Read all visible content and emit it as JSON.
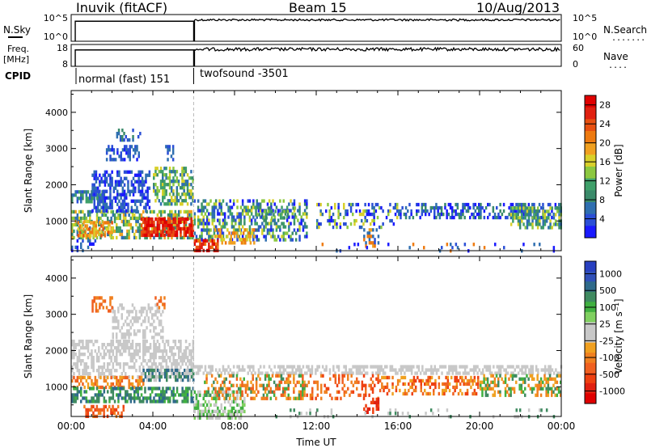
{
  "header": {
    "station": "Inuvik (fitACF)",
    "beam": "Beam 15",
    "date": "10/Aug/2013"
  },
  "top_panels": {
    "nsky": {
      "label": "N.Sky",
      "left_ticks": [
        "10^5",
        "10^0"
      ],
      "right_label": "N.Search",
      "right_ticks": [
        "10^5",
        "10^0"
      ],
      "right_marker": ".........",
      "level_before_change": 0.75,
      "level_after_change": 0.8
    },
    "freq": {
      "label_line1": "Freq.",
      "label_line2": "[MHz]",
      "left_ticks": [
        "18",
        "8"
      ],
      "right_label": "Nave",
      "right_ticks": [
        "60",
        "0"
      ],
      "right_marker": "....",
      "level_before_change": 0.75,
      "level_after_change": 0.78
    },
    "cpid": {
      "label": "CPID",
      "mode_1": "normal (fast) 151",
      "mode_2": "twofsound -3501",
      "change_time_hours": 6.0
    }
  },
  "chart_data": [
    {
      "type": "heatmap",
      "name": "power",
      "ylabel": "Slant Range [km]",
      "xlabel": "",
      "x_range_hours": [
        0,
        24
      ],
      "ylim_km": [
        180,
        4600
      ],
      "y_ticks": [
        1000,
        2000,
        3000,
        4000
      ],
      "x_ticks": [
        "00:00",
        "04:00",
        "08:00",
        "12:00",
        "16:00",
        "20:00",
        "00:00"
      ],
      "colorbar": {
        "label": "Power [dB]",
        "ticks": [
          "4",
          "8",
          "12",
          "16",
          "20",
          "24",
          "28"
        ],
        "colors": [
          "#1a1aff",
          "#2b4fd6",
          "#2f6fb0",
          "#3a8a6a",
          "#3fa06a",
          "#8cc840",
          "#d8d02a",
          "#f0a020",
          "#ee7a10",
          "#e85010",
          "#e02010",
          "#e00000"
        ]
      },
      "blocks": [
        {
          "t0": 0.0,
          "t1": 1.6,
          "r0": 1500,
          "r1": 1850,
          "colors": [
            1,
            2,
            3,
            4
          ],
          "density": 0.7
        },
        {
          "t0": 0.0,
          "t1": 6.0,
          "r0": 500,
          "r1": 1300,
          "colors": [
            2,
            3,
            4,
            5,
            6,
            7
          ],
          "density": 0.55
        },
        {
          "t0": 0.3,
          "t1": 2.0,
          "r0": 600,
          "r1": 1000,
          "colors": [
            6,
            7,
            8,
            9
          ],
          "density": 0.6
        },
        {
          "t0": 1.0,
          "t1": 3.8,
          "r0": 1300,
          "r1": 2400,
          "colors": [
            0,
            1,
            2
          ],
          "density": 0.55
        },
        {
          "t0": 1.7,
          "t1": 3.3,
          "r0": 2700,
          "r1": 3100,
          "colors": [
            0,
            1,
            2
          ],
          "density": 0.5
        },
        {
          "t0": 2.2,
          "t1": 3.4,
          "r0": 3200,
          "r1": 3550,
          "colors": [
            1,
            2,
            3
          ],
          "density": 0.35
        },
        {
          "t0": 4.0,
          "t1": 6.0,
          "r0": 1500,
          "r1": 2500,
          "colors": [
            2,
            3,
            4,
            5,
            6
          ],
          "density": 0.55
        },
        {
          "t0": 3.4,
          "t1": 6.0,
          "r0": 600,
          "r1": 1100,
          "colors": [
            9,
            10,
            11
          ],
          "density": 0.8
        },
        {
          "t0": 4.6,
          "t1": 5.0,
          "r0": 2700,
          "r1": 3100,
          "colors": [
            1,
            2
          ],
          "density": 0.45
        },
        {
          "t0": 0.0,
          "t1": 1.2,
          "r0": 200,
          "r1": 500,
          "colors": [
            0,
            1,
            2
          ],
          "density": 0.3
        },
        {
          "t0": 6.0,
          "t1": 11.5,
          "r0": 500,
          "r1": 1600,
          "colors": [
            0,
            1,
            2,
            3,
            4,
            5,
            6
          ],
          "density": 0.45
        },
        {
          "t0": 6.0,
          "t1": 7.2,
          "r0": 200,
          "r1": 500,
          "colors": [
            8,
            9,
            10,
            11
          ],
          "density": 0.8
        },
        {
          "t0": 7.0,
          "t1": 9.0,
          "r0": 400,
          "r1": 800,
          "colors": [
            6,
            7,
            8
          ],
          "density": 0.4
        },
        {
          "t0": 9.0,
          "t1": 11.0,
          "r0": 1100,
          "r1": 1400,
          "colors": [
            3,
            4,
            5
          ],
          "density": 0.35
        },
        {
          "t0": 12.0,
          "t1": 16.0,
          "r0": 800,
          "r1": 1500,
          "colors": [
            0,
            1,
            2,
            5,
            6
          ],
          "density": 0.3
        },
        {
          "t0": 14.3,
          "t1": 15.0,
          "r0": 300,
          "r1": 800,
          "colors": [
            1,
            2,
            7,
            8
          ],
          "density": 0.5
        },
        {
          "t0": 16.0,
          "t1": 24.0,
          "r0": 1100,
          "r1": 1500,
          "colors": [
            0,
            1,
            2,
            3
          ],
          "density": 0.45
        },
        {
          "t0": 21.5,
          "t1": 24.0,
          "r0": 800,
          "r1": 1400,
          "colors": [
            2,
            3,
            4,
            5,
            6
          ],
          "density": 0.55
        },
        {
          "t0": 12.0,
          "t1": 24.0,
          "r0": 180,
          "r1": 400,
          "colors": [
            0,
            1,
            2,
            8
          ],
          "density": 0.08
        }
      ]
    },
    {
      "type": "heatmap",
      "name": "velocity",
      "ylabel": "Slant Range [km]",
      "xlabel": "Time UT",
      "x_range_hours": [
        0,
        24
      ],
      "ylim_km": [
        180,
        4600
      ],
      "y_ticks": [
        1000,
        2000,
        3000,
        4000
      ],
      "x_ticks": [
        "00:00",
        "04:00",
        "08:00",
        "12:00",
        "16:00",
        "20:00",
        "00:00"
      ],
      "colorbar": {
        "label": "Velocity [m s⁻¹]",
        "ticks": [
          "1000",
          "500",
          "100",
          "25",
          "-25",
          "-100",
          "-500",
          "-1000"
        ],
        "colors": [
          "#2840c0",
          "#3050b8",
          "#2f6a8a",
          "#3f8a60",
          "#40b040",
          "#80d060",
          "#c8c8c8",
          "#c8c8c8",
          "#f0a020",
          "#f08020",
          "#f06020",
          "#ee4010",
          "#e02010",
          "#e00000"
        ]
      },
      "blocks": [
        {
          "t0": 0.0,
          "t1": 6.0,
          "r0": 1300,
          "r1": 2300,
          "colors": [
            6,
            7
          ],
          "density": 0.55
        },
        {
          "t0": 2.0,
          "t1": 4.5,
          "r0": 2400,
          "r1": 3300,
          "colors": [
            6,
            7
          ],
          "density": 0.4
        },
        {
          "t0": 0.0,
          "t1": 3.5,
          "r0": 1000,
          "r1": 1300,
          "colors": [
            8,
            9,
            10
          ],
          "density": 0.55
        },
        {
          "t0": 0.0,
          "t1": 6.0,
          "r0": 600,
          "r1": 1000,
          "colors": [
            2,
            3,
            4
          ],
          "density": 0.6
        },
        {
          "t0": 0.6,
          "t1": 2.6,
          "r0": 180,
          "r1": 500,
          "colors": [
            9,
            10,
            11
          ],
          "density": 0.55
        },
        {
          "t0": 3.5,
          "t1": 6.0,
          "r0": 1200,
          "r1": 1500,
          "colors": [
            2,
            3,
            6
          ],
          "density": 0.5
        },
        {
          "t0": 1.0,
          "t1": 2.0,
          "r0": 3100,
          "r1": 3500,
          "colors": [
            9,
            10
          ],
          "density": 0.4
        },
        {
          "t0": 4.0,
          "t1": 4.6,
          "r0": 3200,
          "r1": 3500,
          "colors": [
            9,
            10
          ],
          "density": 0.35
        },
        {
          "t0": 6.0,
          "t1": 24.0,
          "r0": 1350,
          "r1": 1600,
          "colors": [
            6,
            7
          ],
          "density": 0.55
        },
        {
          "t0": 6.0,
          "t1": 8.5,
          "r0": 180,
          "r1": 900,
          "colors": [
            6,
            7,
            4,
            5
          ],
          "density": 0.55
        },
        {
          "t0": 6.5,
          "t1": 11.5,
          "r0": 700,
          "r1": 1350,
          "colors": [
            8,
            9,
            10,
            3,
            4
          ],
          "density": 0.45
        },
        {
          "t0": 11.5,
          "t1": 15.0,
          "r0": 700,
          "r1": 1350,
          "colors": [
            9,
            10,
            11
          ],
          "density": 0.3
        },
        {
          "t0": 14.3,
          "t1": 15.0,
          "r0": 300,
          "r1": 700,
          "colors": [
            11,
            12
          ],
          "density": 0.5
        },
        {
          "t0": 15.0,
          "t1": 20.0,
          "r0": 800,
          "r1": 1300,
          "colors": [
            8,
            9,
            10,
            11
          ],
          "density": 0.45
        },
        {
          "t0": 20.0,
          "t1": 24.0,
          "r0": 800,
          "r1": 1350,
          "colors": [
            3,
            4,
            8,
            9
          ],
          "density": 0.45
        },
        {
          "t0": 10.0,
          "t1": 24.0,
          "r0": 180,
          "r1": 400,
          "colors": [
            6,
            7,
            3
          ],
          "density": 0.08
        }
      ]
    }
  ]
}
